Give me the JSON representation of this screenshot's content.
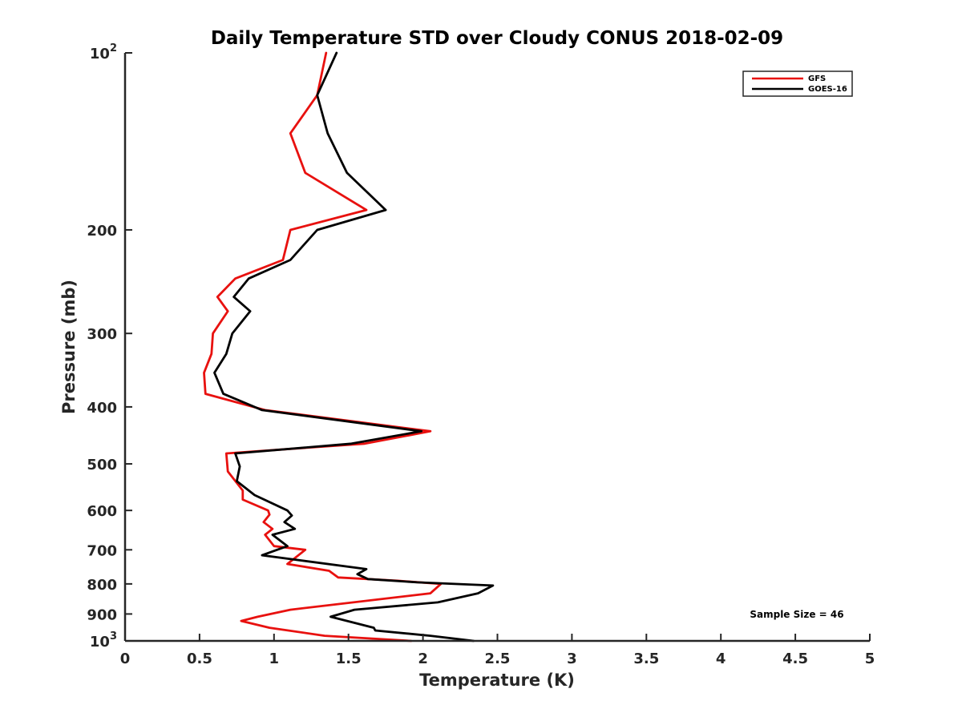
{
  "chart_data": {
    "type": "line",
    "title": "Daily Temperature STD over Cloudy CONUS 2018-02-09",
    "xlabel": "Temperature (K)",
    "ylabel": "Pressure (mb)",
    "xlim": [
      0,
      5
    ],
    "ylim": [
      100,
      1000
    ],
    "yscale": "log",
    "y_reversed": true,
    "grid": false,
    "legend_position": "top-right",
    "x_ticks": [
      0,
      0.5,
      1,
      1.5,
      2,
      2.5,
      3,
      3.5,
      4,
      4.5,
      5
    ],
    "x_tick_labels": [
      "0",
      "0.5",
      "1",
      "1.5",
      "2",
      "2.5",
      "3",
      "3.5",
      "4",
      "4.5",
      "5"
    ],
    "y_ticks": [
      {
        "value": 100,
        "label": "10",
        "sup": "2"
      },
      {
        "value": 200,
        "label": "200",
        "sup": ""
      },
      {
        "value": 300,
        "label": "300",
        "sup": ""
      },
      {
        "value": 400,
        "label": "400",
        "sup": ""
      },
      {
        "value": 500,
        "label": "500",
        "sup": ""
      },
      {
        "value": 600,
        "label": "600",
        "sup": ""
      },
      {
        "value": 700,
        "label": "700",
        "sup": ""
      },
      {
        "value": 800,
        "label": "800",
        "sup": ""
      },
      {
        "value": 900,
        "label": "900",
        "sup": ""
      },
      {
        "value": 1000,
        "label": "10",
        "sup": "3"
      }
    ],
    "annotation": "Sample Size = 46",
    "series": [
      {
        "name": "GFS",
        "color": "#e8110f",
        "points": [
          [
            1.35,
            100
          ],
          [
            1.29,
            118
          ],
          [
            1.11,
            137
          ],
          [
            1.21,
            160
          ],
          [
            1.62,
            185
          ],
          [
            1.11,
            200
          ],
          [
            1.06,
            225
          ],
          [
            0.74,
            242
          ],
          [
            0.62,
            260
          ],
          [
            0.69,
            275
          ],
          [
            0.59,
            300
          ],
          [
            0.58,
            325
          ],
          [
            0.53,
            350
          ],
          [
            0.54,
            380
          ],
          [
            0.94,
            405
          ],
          [
            2.05,
            440
          ],
          [
            1.61,
            462
          ],
          [
            0.68,
            480
          ],
          [
            0.69,
            515
          ],
          [
            0.79,
            555
          ],
          [
            0.79,
            575
          ],
          [
            0.96,
            600
          ],
          [
            0.97,
            610
          ],
          [
            0.93,
            628
          ],
          [
            0.99,
            645
          ],
          [
            0.94,
            660
          ],
          [
            1.0,
            690
          ],
          [
            1.21,
            700
          ],
          [
            1.09,
            740
          ],
          [
            1.37,
            760
          ],
          [
            1.43,
            780
          ],
          [
            1.83,
            790
          ],
          [
            2.12,
            800
          ],
          [
            2.05,
            830
          ],
          [
            1.11,
            885
          ],
          [
            0.89,
            910
          ],
          [
            0.78,
            925
          ],
          [
            0.97,
            950
          ],
          [
            1.34,
            980
          ],
          [
            1.92,
            1000
          ]
        ]
      },
      {
        "name": "GOES-16",
        "color": "#000000",
        "points": [
          [
            1.42,
            100
          ],
          [
            1.29,
            118
          ],
          [
            1.36,
            137
          ],
          [
            1.49,
            160
          ],
          [
            1.75,
            185
          ],
          [
            1.29,
            200
          ],
          [
            1.11,
            225
          ],
          [
            0.83,
            242
          ],
          [
            0.73,
            260
          ],
          [
            0.84,
            275
          ],
          [
            0.72,
            300
          ],
          [
            0.68,
            325
          ],
          [
            0.6,
            350
          ],
          [
            0.66,
            380
          ],
          [
            0.92,
            405
          ],
          [
            1.99,
            440
          ],
          [
            1.52,
            462
          ],
          [
            0.74,
            480
          ],
          [
            0.77,
            505
          ],
          [
            0.75,
            535
          ],
          [
            0.87,
            565
          ],
          [
            1.09,
            600
          ],
          [
            1.12,
            612
          ],
          [
            1.07,
            628
          ],
          [
            1.14,
            645
          ],
          [
            0.99,
            660
          ],
          [
            1.09,
            690
          ],
          [
            0.92,
            715
          ],
          [
            1.62,
            755
          ],
          [
            1.56,
            770
          ],
          [
            1.63,
            785
          ],
          [
            1.96,
            795
          ],
          [
            2.47,
            805
          ],
          [
            2.37,
            830
          ],
          [
            2.1,
            860
          ],
          [
            1.54,
            885
          ],
          [
            1.38,
            910
          ],
          [
            1.67,
            950
          ],
          [
            1.68,
            960
          ],
          [
            2.05,
            980
          ],
          [
            2.34,
            1000
          ]
        ]
      }
    ]
  }
}
